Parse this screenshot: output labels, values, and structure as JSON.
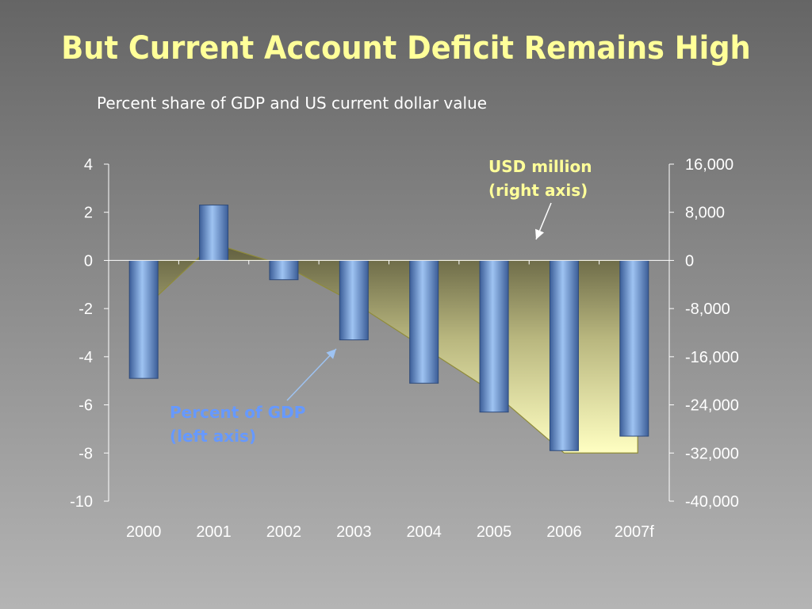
{
  "slide": {
    "title": "But Current Account Deficit Remains High",
    "subtitle": "Percent share of GDP and US current dollar value"
  },
  "chart_data": {
    "type": "bar",
    "categories": [
      "2000",
      "2001",
      "2002",
      "2003",
      "2004",
      "2005",
      "2006",
      "2007f"
    ],
    "series": [
      {
        "name": "Percent of GDP",
        "type": "bar",
        "axis": "left",
        "values": [
          -4.9,
          2.3,
          -0.8,
          -3.3,
          -5.1,
          -6.3,
          -7.9,
          -7.3
        ]
      },
      {
        "name": "USD million",
        "type": "area",
        "axis": "right",
        "values": [
          -8000,
          2800,
          -800,
          -7000,
          -14500,
          -22000,
          -32000,
          -32000
        ]
      }
    ],
    "left_axis": {
      "min": -10,
      "max": 4,
      "ticks": [
        "4",
        "2",
        "0",
        "-2",
        "-4",
        "-6",
        "-8",
        "-10"
      ]
    },
    "right_axis": {
      "min": -40000,
      "max": 16000,
      "ticks": [
        "16,000",
        "8,000",
        "0",
        "-8,000",
        "-16,000",
        "-24,000",
        "-32,000",
        "-40,000"
      ]
    },
    "annotations": [
      {
        "id": "usd",
        "lines": [
          "USD million",
          "(right axis)"
        ],
        "color": "#ffff99"
      },
      {
        "id": "gdp",
        "lines": [
          "Percent of GDP",
          "(left axis)"
        ],
        "color": "#6699ff"
      }
    ],
    "grid": false,
    "legend": "none"
  },
  "colors": {
    "title": "#ffff99",
    "bar": "#6f9bd8",
    "area_top": "#6e6b48",
    "area_bottom": "#ffffc2",
    "axis": "#ffffff"
  }
}
